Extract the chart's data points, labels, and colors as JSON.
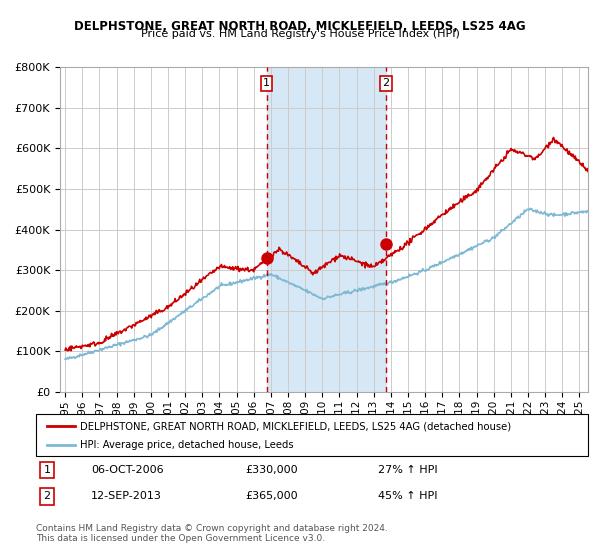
{
  "title1": "DELPHSTONE, GREAT NORTH ROAD, MICKLEFIELD, LEEDS, LS25 4AG",
  "title2": "Price paid vs. HM Land Registry's House Price Index (HPI)",
  "ylabel_ticks": [
    "£0",
    "£100K",
    "£200K",
    "£300K",
    "£400K",
    "£500K",
    "£600K",
    "£700K",
    "£800K"
  ],
  "ylim": [
    0,
    800000
  ],
  "xlim_start": 1995.0,
  "xlim_end": 2025.5,
  "hpi_color": "#7EB8D4",
  "price_color": "#CC0000",
  "shade_color": "#D6E8F5",
  "vline_color": "#CC0000",
  "grid_color": "#CCCCCC",
  "sale1_x": 2006.76,
  "sale1_y": 330000,
  "sale2_x": 2013.71,
  "sale2_y": 365000,
  "sale1_label": "1",
  "sale2_label": "2",
  "legend_line1": "DELPHSTONE, GREAT NORTH ROAD, MICKLEFIELD, LEEDS, LS25 4AG (detached house)",
  "legend_line2": "HPI: Average price, detached house, Leeds",
  "table_row1": [
    "1",
    "06-OCT-2006",
    "£330,000",
    "27% ↑ HPI"
  ],
  "table_row2": [
    "2",
    "12-SEP-2013",
    "£365,000",
    "45% ↑ HPI"
  ],
  "footnote": "Contains HM Land Registry data © Crown copyright and database right 2024.\nThis data is licensed under the Open Government Licence v3.0.",
  "xlabel_years": [
    1995,
    1996,
    1997,
    1998,
    1999,
    2000,
    2001,
    2002,
    2003,
    2004,
    2005,
    2006,
    2007,
    2008,
    2009,
    2010,
    2011,
    2012,
    2013,
    2014,
    2015,
    2016,
    2017,
    2018,
    2019,
    2020,
    2021,
    2022,
    2023,
    2024,
    2025
  ]
}
